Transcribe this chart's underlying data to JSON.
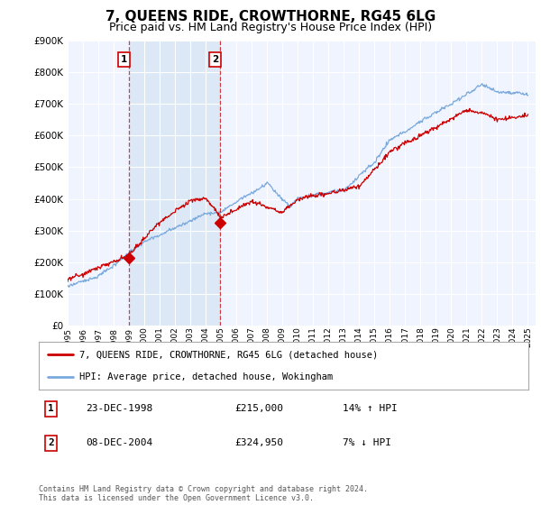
{
  "title": "7, QUEENS RIDE, CROWTHORNE, RG45 6LG",
  "subtitle": "Price paid vs. HM Land Registry's House Price Index (HPI)",
  "title_fontsize": 11,
  "subtitle_fontsize": 9,
  "background_color": "#ffffff",
  "plot_bg_color": "#f0f4ff",
  "shade_color": "#dce8f5",
  "grid_color": "#ffffff",
  "red_line_color": "#cc0000",
  "blue_line_color": "#7aaadd",
  "transaction1": {
    "label": "1",
    "date": "23-DEC-1998",
    "price": 215000,
    "hpi_pct": "14% ↑ HPI",
    "x": 1998.97
  },
  "transaction2": {
    "label": "2",
    "date": "08-DEC-2004",
    "price": 324950,
    "hpi_pct": "7% ↓ HPI",
    "x": 2004.93
  },
  "legend_line1": "7, QUEENS RIDE, CROWTHORNE, RG45 6LG (detached house)",
  "legend_line2": "HPI: Average price, detached house, Wokingham",
  "footnote": "Contains HM Land Registry data © Crown copyright and database right 2024.\nThis data is licensed under the Open Government Licence v3.0.",
  "ylim": [
    0,
    900000
  ],
  "yticks": [
    0,
    100000,
    200000,
    300000,
    400000,
    500000,
    600000,
    700000,
    800000,
    900000
  ],
  "xlim_start": 1995.0,
  "xlim_end": 2025.5
}
